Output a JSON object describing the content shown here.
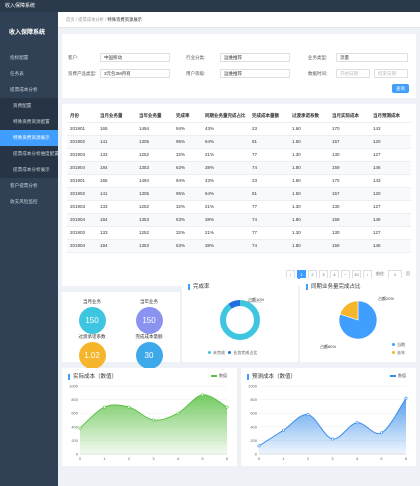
{
  "app": {
    "topbar_title": "收入保障系统",
    "sidebar_title": "收入保障系统"
  },
  "sidebar": {
    "items": [
      {
        "label": "指标配置",
        "sub": false,
        "active": false
      },
      {
        "label": "任务表",
        "sub": false,
        "active": false
      },
      {
        "label": "提票成本分析",
        "sub": false,
        "active": false
      },
      {
        "label": "资费配置",
        "sub": true,
        "active": false
      },
      {
        "label": "特殊资费资源配置",
        "sub": true,
        "active": false
      },
      {
        "label": "特殊资费资源展示",
        "sub": true,
        "active": true
      },
      {
        "label": "提票成本分析维度配置",
        "sub": true,
        "active": false
      },
      {
        "label": "提票成本分析展示",
        "sub": true,
        "active": false
      },
      {
        "label": "客户提票分析",
        "sub": false,
        "active": false
      },
      {
        "label": "收支风险监控",
        "sub": false,
        "active": false
      }
    ]
  },
  "breadcrumb": {
    "prefix": "首页 / 提票成本分析 /",
    "current": "特殊资费资源展示"
  },
  "filter": {
    "customer_label": "客户:",
    "customer_value": "中国移动",
    "industry_label": "行业分类:",
    "industry_value": "运维推荐",
    "business_type_label": "业务类型:",
    "business_type_value": "流量",
    "product_label": "资费产品类型:",
    "product_value": "3元包3M月有",
    "user_level_label": "用户等级:",
    "user_level_value": "运维推荐",
    "date_label": "数据时间:",
    "date_start_placeholder": "开始日期",
    "date_end_placeholder": "结束日期",
    "search_button": "查询"
  },
  "table": {
    "headers": [
      "月份",
      "当月业务量",
      "当年业务量",
      "完成率",
      "同期业务量完成占比",
      "完成成本量额",
      "过渡承诺系数",
      "当月实际成本",
      "当月预测成本"
    ],
    "rows": [
      [
        "201901",
        "165",
        "1494",
        "94%",
        "43%",
        "23",
        "1.60",
        "170",
        "143"
      ],
      [
        "201902",
        "141",
        "1305",
        "95%",
        "64%",
        "81",
        "1.50",
        "157",
        "120"
      ],
      [
        "201903",
        "133",
        "1252",
        "32%",
        "21%",
        "77",
        "1.30",
        "130",
        "127"
      ],
      [
        "201904",
        "184",
        "1353",
        "63%",
        "38%",
        "74",
        "1.80",
        "159",
        "146"
      ],
      [
        "201901",
        "165",
        "1494",
        "94%",
        "43%",
        "23",
        "1.60",
        "170",
        "143"
      ],
      [
        "201902",
        "141",
        "1305",
        "95%",
        "64%",
        "81",
        "1.50",
        "157",
        "120"
      ],
      [
        "201903",
        "133",
        "1252",
        "32%",
        "21%",
        "77",
        "1.30",
        "130",
        "127"
      ],
      [
        "201904",
        "184",
        "1353",
        "63%",
        "38%",
        "74",
        "1.80",
        "159",
        "146"
      ],
      [
        "201903",
        "133",
        "1252",
        "32%",
        "21%",
        "77",
        "1.30",
        "130",
        "127"
      ],
      [
        "201904",
        "184",
        "1353",
        "63%",
        "38%",
        "74",
        "1.80",
        "159",
        "146"
      ]
    ]
  },
  "pagination": {
    "prev": "‹",
    "pages": [
      "1",
      "2",
      "3",
      "4"
    ],
    "ellipsis": "···",
    "last": "10",
    "next": "›",
    "goto_label": "前往",
    "goto_value": "1",
    "page_unit": "页",
    "current": "1"
  },
  "stats": {
    "cur_month": {
      "label": "当月业务",
      "value": "150",
      "color": "#3ec5e0"
    },
    "cur_year": {
      "label": "当年业务",
      "value": "150",
      "color": "#8b93f0"
    },
    "promise": {
      "label": "过渡承诺系数",
      "value": "1.02",
      "color": "#f5b62b"
    },
    "cost": {
      "label": "完成成本量额",
      "value": "30",
      "color": "#3ea9ea"
    }
  },
  "donut": {
    "title": "完成率",
    "label": "占额10%",
    "legend": [
      "未完成",
      "业务完成占比"
    ],
    "colors": [
      "#3ec5e0",
      "#1e6fe0"
    ],
    "values": [
      90,
      10
    ]
  },
  "pie": {
    "title": "同期业务量完成占比",
    "label_top": "占额20%",
    "label_bottom": "占额80%",
    "legend": [
      "当期",
      "去年"
    ],
    "colors": [
      "#409eff",
      "#f5b62b"
    ],
    "values": [
      80,
      20
    ]
  },
  "chart_data": [
    {
      "type": "area",
      "title": "实际成本（数值）",
      "legend": "数值",
      "color": "#5cc146",
      "x": [
        0,
        1,
        2,
        3,
        4,
        5,
        6
      ],
      "values": [
        380,
        690,
        690,
        500,
        600,
        870,
        690
      ],
      "ylim": [
        0,
        1000
      ],
      "yticks": [
        0,
        200,
        400,
        600,
        800,
        1000
      ]
    },
    {
      "type": "area",
      "title": "预测成本（数值）",
      "legend": "数值",
      "color": "#3a8eea",
      "x": [
        0,
        1,
        2,
        3,
        4,
        5,
        6
      ],
      "values": [
        120,
        350,
        580,
        220,
        460,
        310,
        820
      ],
      "ylim": [
        0,
        1000
      ],
      "yticks": [
        0,
        200,
        400,
        600,
        800,
        1000
      ]
    }
  ]
}
